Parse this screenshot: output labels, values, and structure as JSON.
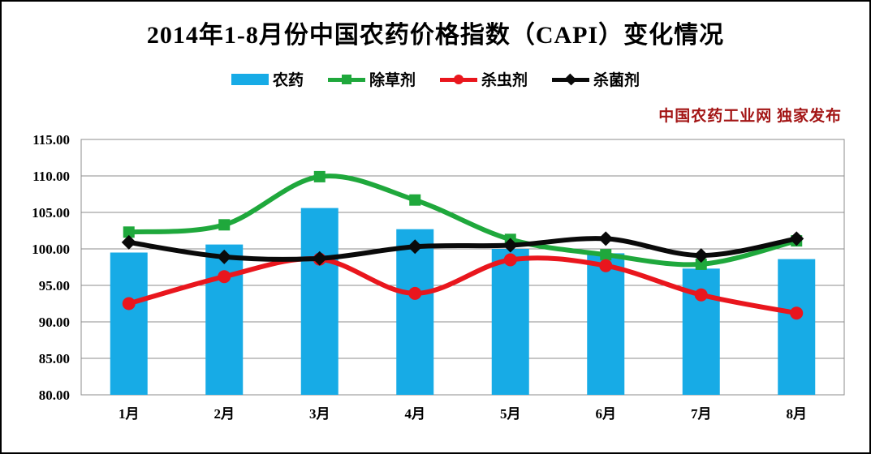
{
  "publisher_note": "中国农药工业网 独家发布",
  "chart_data": {
    "type": "bar+line",
    "title": "2014年1-8月份中国农药价格指数（CAPI）变化情况",
    "categories": [
      "1月",
      "2月",
      "3月",
      "4月",
      "5月",
      "6月",
      "7月",
      "8月"
    ],
    "series": [
      {
        "name": "农药",
        "type": "bar",
        "marker": "none",
        "color": "#17ABE6",
        "values": [
          99.5,
          100.6,
          105.6,
          102.7,
          100.0,
          99.4,
          97.3,
          98.6
        ]
      },
      {
        "name": "除草剂",
        "type": "line",
        "marker": "square",
        "color": "#1FA83C",
        "values": [
          102.3,
          103.3,
          109.9,
          106.7,
          101.3,
          99.2,
          97.9,
          101.1
        ]
      },
      {
        "name": "杀虫剂",
        "type": "line",
        "marker": "circle",
        "color": "#E9161D",
        "values": [
          92.5,
          96.2,
          98.6,
          93.9,
          98.5,
          97.7,
          93.7,
          91.2
        ]
      },
      {
        "name": "杀菌剂",
        "type": "line",
        "marker": "diamond",
        "color": "#0A0A0A",
        "values": [
          100.9,
          98.9,
          98.7,
          100.3,
          100.5,
          101.4,
          99.1,
          101.4
        ]
      }
    ],
    "xlabel": "",
    "ylabel": "",
    "ylim": [
      80,
      115
    ],
    "ytick_step": 5,
    "ytick_labels": [
      "80.00",
      "85.00",
      "90.00",
      "95.00",
      "100.00",
      "105.00",
      "110.00",
      "115.00"
    ],
    "grid": true,
    "gridline_color": "#8C8C8C",
    "legend_position": "top",
    "smoothed_lines": true
  }
}
